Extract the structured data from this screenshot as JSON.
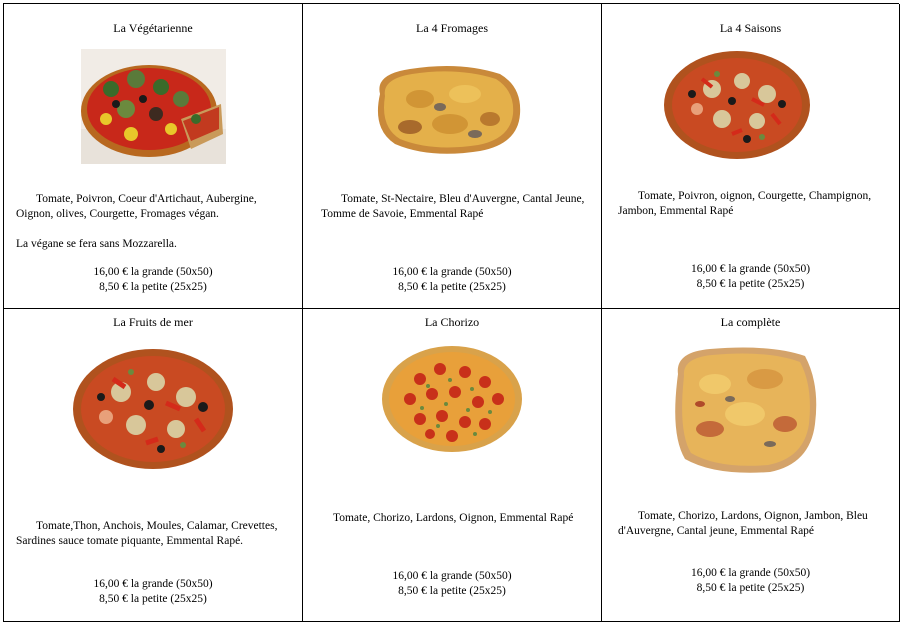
{
  "pizzas": [
    {
      "name": "La Végétarienne",
      "description": "Tomate, Poivron, Coeur d'Artichaut, Aubergine, Oignon, olives, Courgette, Fromages végan.",
      "note": "La végane se fera sans Mozzarella.",
      "price_large": "16,00 € la grande (50x50)",
      "price_small": "8,50 € la petite (25x25)"
    },
    {
      "name": "La 4 Fromages",
      "description": "Tomate, St-Nectaire, Bleu d'Auvergne, Cantal Jeune, Tomme de Savoie, Emmental Rapé",
      "price_large": "16,00 € la grande (50x50)",
      "price_small": "8,50 € la petite (25x25)"
    },
    {
      "name": "La 4 Saisons",
      "description": "Tomate, Poivron, oignon, Courgette, Champignon, Jambon, Emmental Rapé",
      "price_large": "16,00 € la grande (50x50)",
      "price_small": "8,50 € la petite (25x25)"
    },
    {
      "name": "La Fruits de mer",
      "description": "Tomate,Thon, Anchois, Moules, Calamar, Crevettes, Sardines sauce tomate piquante, Emmental Rapé.",
      "price_large": "16,00 € la grande (50x50)",
      "price_small": "8,50 € la petite (25x25)"
    },
    {
      "name": "La Chorizo",
      "description": "Tomate, Chorizo, Lardons, Oignon, Emmental Rapé",
      "price_large": "16,00 € la grande (50x50)",
      "price_small": "8,50 € la petite (25x25)"
    },
    {
      "name": "La complète",
      "description": "Tomate, Chorizo, Lardons, Oignon, Jambon, Bleu d'Auvergne, Cantal jeune, Emmental Rapé",
      "price_large": "16,00 € la grande (50x50)",
      "price_small": "8,50 € la petite (25x25)"
    }
  ]
}
